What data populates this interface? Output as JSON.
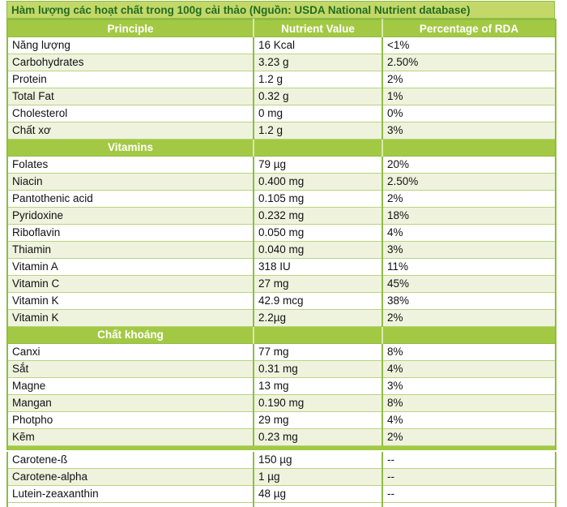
{
  "chart_data": {
    "type": "table",
    "title": "Hàm lượng các hoạt chất trong 100g cải thảo (Nguồn: USDA National Nutrient database)",
    "columns": [
      "Principle",
      "Nutrient Value",
      "Percentage of RDA"
    ],
    "rows": [
      {
        "type": "data",
        "principle": "Năng lượng",
        "value": "16 Kcal",
        "rda": "<1%"
      },
      {
        "type": "data",
        "principle": "Carbohydrates",
        "value": "3.23 g",
        "rda": "2.50%"
      },
      {
        "type": "data",
        "principle": "Protein",
        "value": "1.2 g",
        "rda": "2%"
      },
      {
        "type": "data",
        "principle": "Total Fat",
        "value": "0.32 g",
        "rda": "1%"
      },
      {
        "type": "data",
        "principle": "Cholesterol",
        "value": "0 mg",
        "rda": "0%"
      },
      {
        "type": "data",
        "principle": "Chất xơ",
        "value": "1.2 g",
        "rda": "3%"
      },
      {
        "type": "section",
        "label": "Vitamins"
      },
      {
        "type": "data",
        "principle": "Folates",
        "value": "79 µg",
        "rda": "20%"
      },
      {
        "type": "data",
        "principle": "Niacin",
        "value": "0.400 mg",
        "rda": "2.50%"
      },
      {
        "type": "data",
        "principle": "Pantothenic acid",
        "value": "0.105 mg",
        "rda": "2%"
      },
      {
        "type": "data",
        "principle": "Pyridoxine",
        "value": "0.232 mg",
        "rda": "18%"
      },
      {
        "type": "data",
        "principle": "Riboflavin",
        "value": "0.050 mg",
        "rda": "4%"
      },
      {
        "type": "data",
        "principle": "Thiamin",
        "value": "0.040 mg",
        "rda": "3%"
      },
      {
        "type": "data",
        "principle": "Vitamin A",
        "value": "318 IU",
        "rda": "11%"
      },
      {
        "type": "data",
        "principle": "Vitamin C",
        "value": "27 mg",
        "rda": "45%"
      },
      {
        "type": "data",
        "principle": "Vitamin K",
        "value": "42.9 mcg",
        "rda": "38%"
      },
      {
        "type": "data",
        "principle": "Vitamin K",
        "value": "2.2µg",
        "rda": "2%"
      },
      {
        "type": "section",
        "label": "Chất khoáng"
      },
      {
        "type": "data",
        "principle": "Canxi",
        "value": "77 mg",
        "rda": "8%"
      },
      {
        "type": "data",
        "principle": "Sắt",
        "value": "0.31 mg",
        "rda": "4%"
      },
      {
        "type": "data",
        "principle": "Magne",
        "value": "13 mg",
        "rda": "3%"
      },
      {
        "type": "data",
        "principle": "Mangan",
        "value": "0.190 mg",
        "rda": "8%"
      },
      {
        "type": "data",
        "principle": "Photpho",
        "value": "29 mg",
        "rda": "4%"
      },
      {
        "type": "data",
        "principle": "Kẽm",
        "value": "0.23 mg",
        "rda": "2%"
      },
      {
        "type": "divider"
      },
      {
        "type": "data",
        "principle": "Carotene-ß",
        "value": "150 µg",
        "rda": "--"
      },
      {
        "type": "data",
        "principle": "Carotene-alpha",
        "value": "1 µg",
        "rda": "--"
      },
      {
        "type": "data",
        "principle": "Lutein-zeaxanthin",
        "value": "48 µg",
        "rda": "--"
      },
      {
        "type": "empty"
      }
    ],
    "colors": {
      "title_bg": "#c3d869",
      "title_text": "#226d22",
      "header_bg": "#a3c944",
      "header_text": "#ffffff",
      "section_bg": "#a3c944",
      "row_alt_bg": "#eff3de",
      "row_bg": "#ffffff",
      "border": "#8fbd42",
      "row_border": "#b7d57e"
    },
    "layout": {
      "grid": "bordered",
      "striped": true,
      "section_label_position": "centered-first-column"
    }
  }
}
